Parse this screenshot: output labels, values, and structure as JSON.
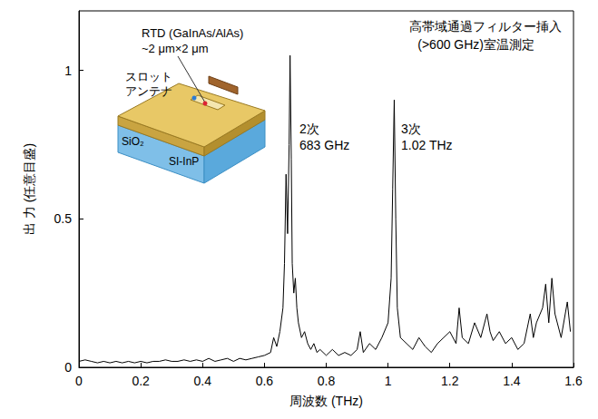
{
  "chart_data": {
    "type": "line",
    "color": "#000000",
    "x_label": "周波数 (THz)",
    "y_label": "出 力 (任意目盛)",
    "xlim": [
      0,
      1.6
    ],
    "xticks": [
      0,
      0.2,
      0.4,
      0.6,
      0.8,
      1,
      1.2,
      1.4,
      1.6
    ],
    "ylim": [
      0,
      1.2
    ],
    "yticks": [
      0,
      0.5,
      1
    ],
    "grid": false,
    "annotations": [
      "高帯域通過フィルター挿入",
      "(>600 GHz)室温測定",
      "2次",
      "683 GHz",
      "3次",
      "1.02 THz"
    ],
    "inset": {
      "labels": [
        "RTD (GaInAs/AlAs)",
        "~2 μm×2 μm",
        "スロット",
        "アンテナ",
        "SiO₂",
        "SI-InP"
      ]
    },
    "x": [
      0,
      0.02,
      0.04,
      0.06,
      0.08,
      0.1,
      0.12,
      0.14,
      0.16,
      0.18,
      0.2,
      0.22,
      0.24,
      0.26,
      0.28,
      0.3,
      0.32,
      0.34,
      0.36,
      0.38,
      0.4,
      0.42,
      0.44,
      0.46,
      0.48,
      0.5,
      0.52,
      0.54,
      0.56,
      0.58,
      0.6,
      0.62,
      0.63,
      0.64,
      0.65,
      0.66,
      0.665,
      0.67,
      0.675,
      0.68,
      0.683,
      0.687,
      0.69,
      0.695,
      0.7,
      0.705,
      0.71,
      0.72,
      0.73,
      0.74,
      0.75,
      0.76,
      0.77,
      0.78,
      0.8,
      0.82,
      0.84,
      0.86,
      0.88,
      0.9,
      0.91,
      0.92,
      0.94,
      0.96,
      0.98,
      1.0,
      1.01,
      1.015,
      1.02,
      1.025,
      1.03,
      1.04,
      1.06,
      1.08,
      1.1,
      1.12,
      1.14,
      1.16,
      1.18,
      1.2,
      1.22,
      1.23,
      1.24,
      1.26,
      1.28,
      1.3,
      1.32,
      1.33,
      1.34,
      1.36,
      1.38,
      1.4,
      1.42,
      1.44,
      1.46,
      1.47,
      1.48,
      1.5,
      1.51,
      1.52,
      1.53,
      1.54,
      1.56,
      1.58,
      1.59
    ],
    "values": [
      0.02,
      0.025,
      0.02,
      0.015,
      0.02,
      0.015,
      0.02,
      0.015,
      0.02,
      0.015,
      0.02,
      0.015,
      0.02,
      0.02,
      0.025,
      0.02,
      0.02,
      0.025,
      0.02,
      0.025,
      0.02,
      0.03,
      0.02,
      0.025,
      0.03,
      0.02,
      0.03,
      0.025,
      0.03,
      0.035,
      0.04,
      0.05,
      0.1,
      0.07,
      0.12,
      0.2,
      0.35,
      0.65,
      0.45,
      0.75,
      1.05,
      0.7,
      0.35,
      0.25,
      0.3,
      0.2,
      0.15,
      0.1,
      0.12,
      0.08,
      0.06,
      0.08,
      0.05,
      0.06,
      0.04,
      0.06,
      0.04,
      0.05,
      0.04,
      0.06,
      0.12,
      0.05,
      0.08,
      0.06,
      0.1,
      0.15,
      0.3,
      0.6,
      0.9,
      0.5,
      0.2,
      0.1,
      0.08,
      0.06,
      0.1,
      0.07,
      0.05,
      0.08,
      0.1,
      0.12,
      0.08,
      0.2,
      0.1,
      0.08,
      0.15,
      0.1,
      0.18,
      0.12,
      0.09,
      0.12,
      0.08,
      0.1,
      0.06,
      0.08,
      0.18,
      0.1,
      0.15,
      0.2,
      0.28,
      0.15,
      0.3,
      0.18,
      0.1,
      0.22,
      0.12
    ]
  }
}
